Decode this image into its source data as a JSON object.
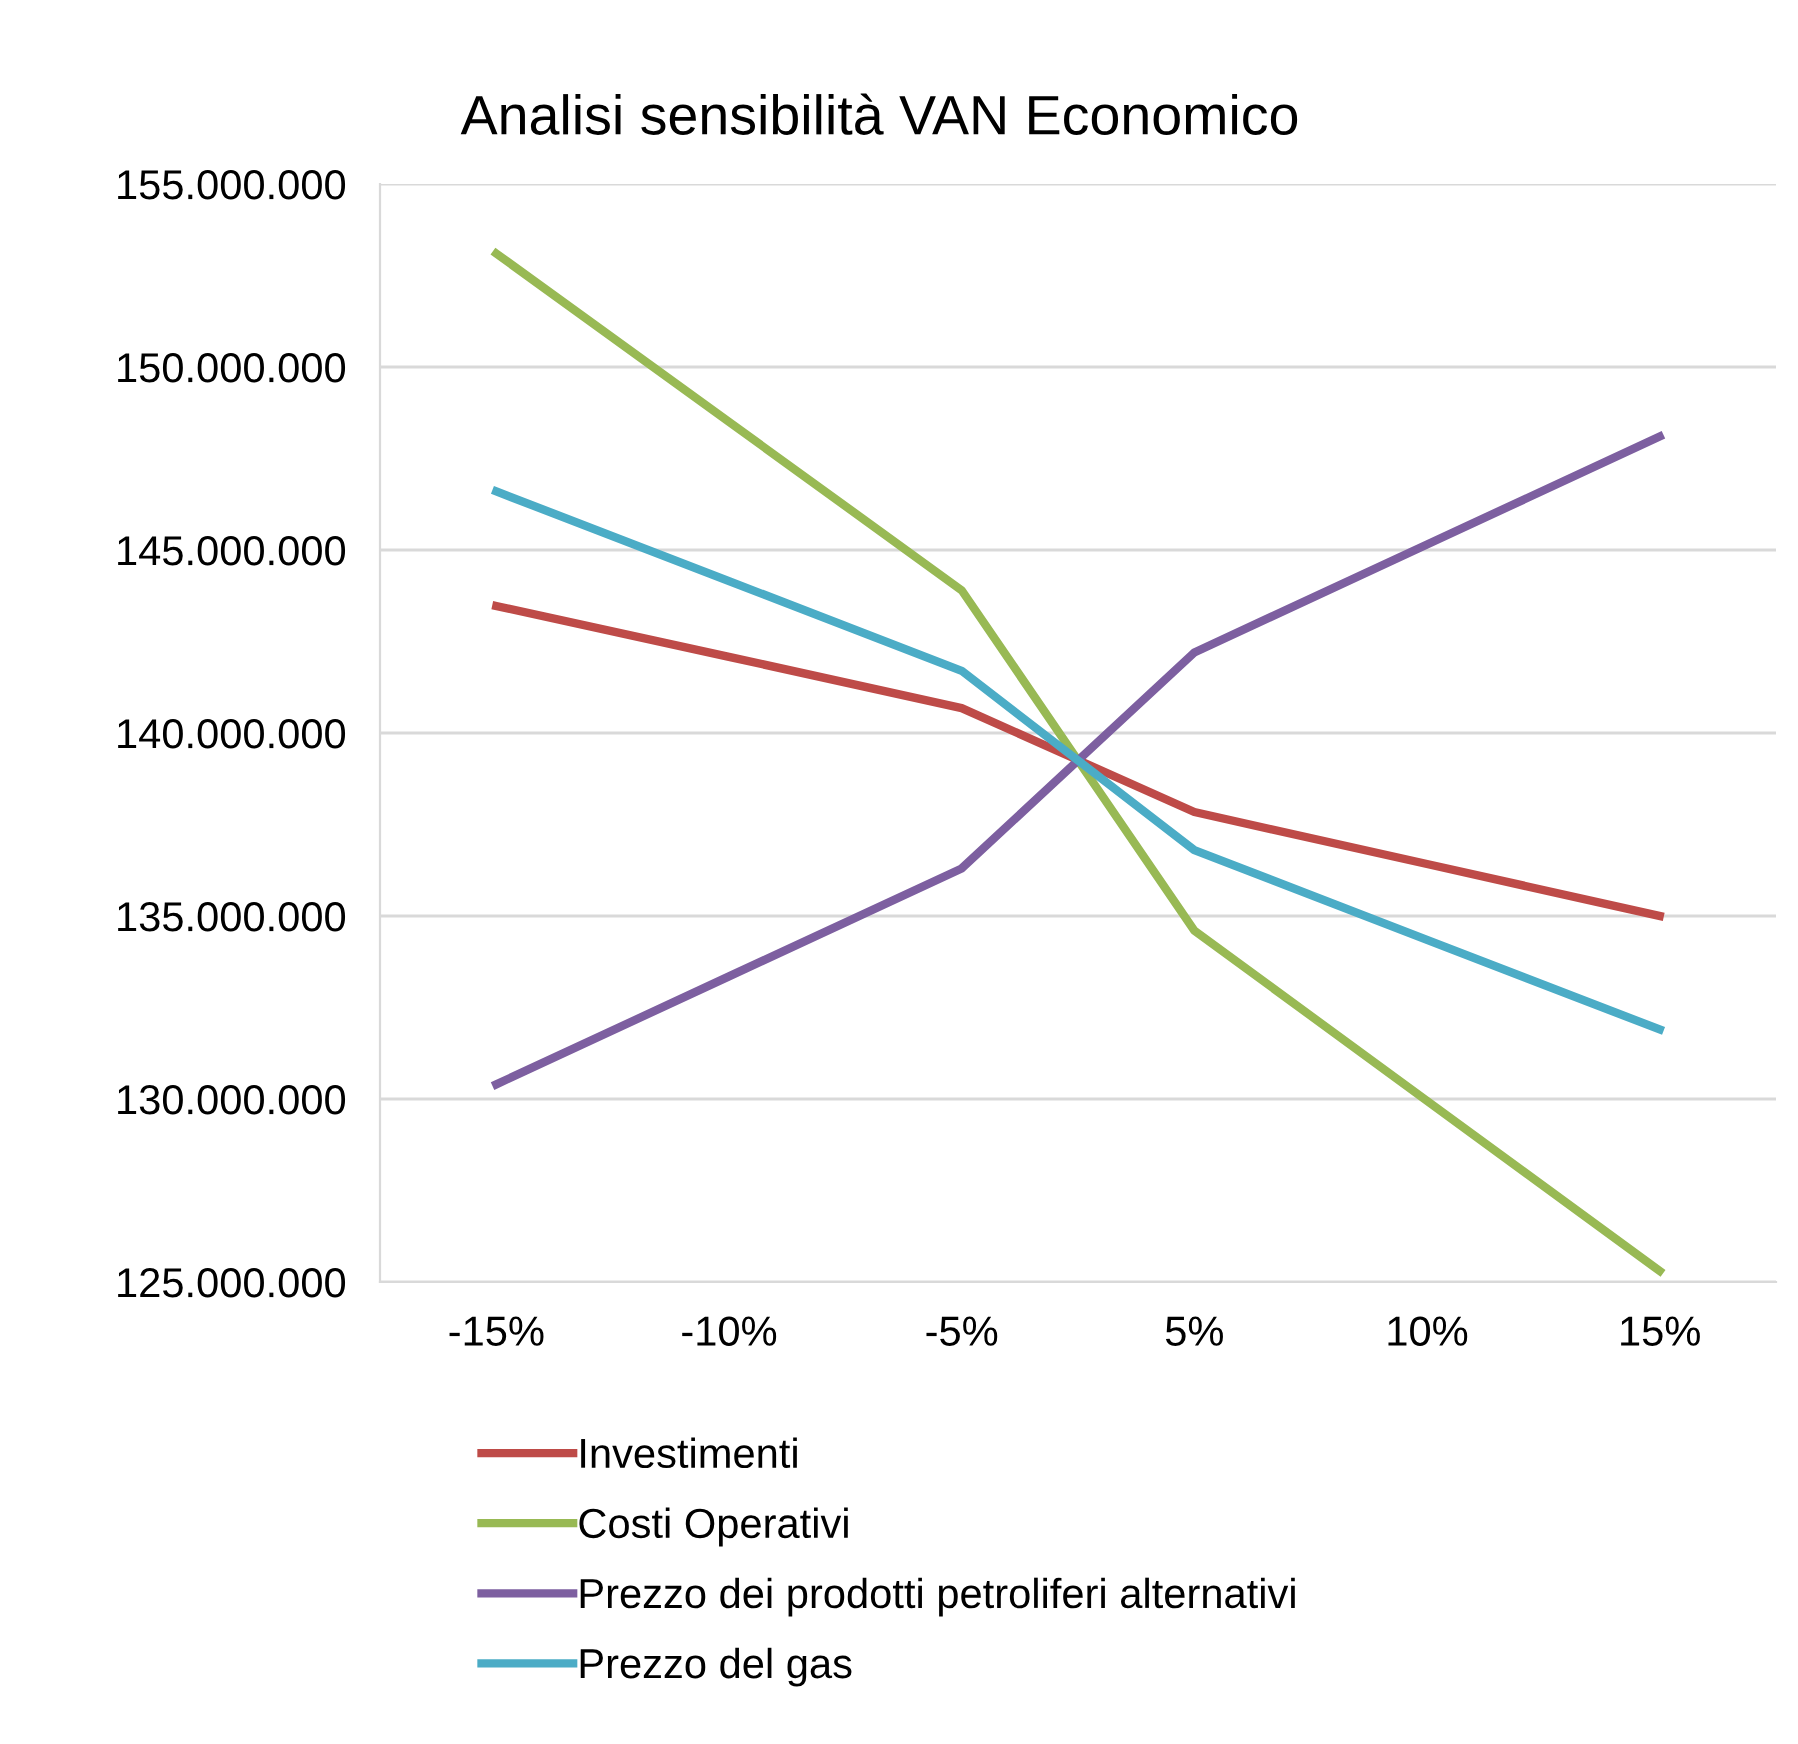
{
  "chart_data": {
    "type": "line",
    "title": "Analisi sensibilità VAN Economico",
    "categories": [
      "-15%",
      "-10%",
      "-5%",
      "5%",
      "10%",
      "15%"
    ],
    "series": [
      {
        "name": "Investimenti",
        "color": "#be4b48",
        "values": [
          143470000,
          142080000,
          140680000,
          137840000,
          136420000,
          135000000
        ]
      },
      {
        "name": "Costi Operativi",
        "color": "#98b954",
        "values": [
          153100000,
          148500000,
          143900000,
          134600000,
          129950000,
          125300000
        ]
      },
      {
        "name": "Prezzo dei prodotti petroliferi alternativi",
        "color": "#7d5fa0",
        "values": [
          130400000,
          133350000,
          136300000,
          142200000,
          145150000,
          148100000
        ]
      },
      {
        "name": "Prezzo del gas",
        "color": "#4bacc6",
        "values": [
          146600000,
          144150000,
          141700000,
          136800000,
          134350000,
          131900000
        ]
      }
    ],
    "ylim": [
      125000000,
      155000000
    ],
    "yticks": [
      {
        "value": 125000000,
        "label": "125.000.000"
      },
      {
        "value": 130000000,
        "label": "130.000.000"
      },
      {
        "value": 135000000,
        "label": "135.000.000"
      },
      {
        "value": 140000000,
        "label": "140.000.000"
      },
      {
        "value": 145000000,
        "label": "145.000.000"
      },
      {
        "value": 150000000,
        "label": "150.000.000"
      },
      {
        "value": 155000000,
        "label": "155.000.000"
      }
    ],
    "grid": "y",
    "legend": "bottom",
    "marker": "none",
    "line_style": "solid"
  }
}
